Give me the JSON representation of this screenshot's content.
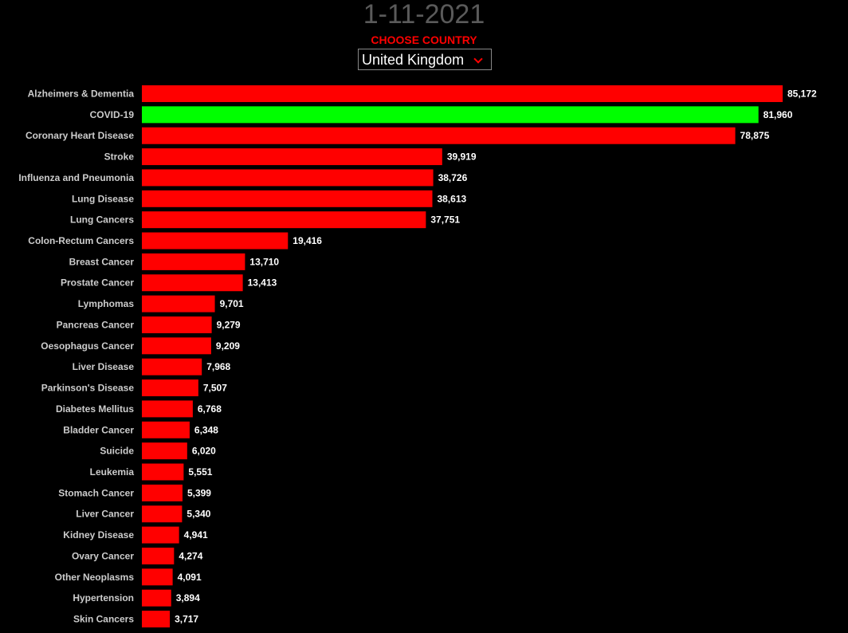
{
  "header": {
    "date": "1-11-2021",
    "choose_label": "CHOOSE COUNTRY",
    "selected_country": "United Kingdom"
  },
  "colors": {
    "bar_default": "#ff0000",
    "bar_highlight": "#00ff00",
    "background": "#000000",
    "date_text": "#5a5a5a",
    "label_text": "#cccccc",
    "value_text": "#ffffff"
  },
  "chart_data": {
    "type": "bar",
    "orientation": "horizontal",
    "highlight": "COVID-19",
    "categories": [
      "Alzheimers & Dementia",
      "COVID-19",
      "Coronary Heart Disease",
      "Stroke",
      "Influenza and Pneumonia",
      "Lung Disease",
      "Lung Cancers",
      "Colon-Rectum Cancers",
      "Breast Cancer",
      "Prostate Cancer",
      "Lymphomas",
      "Pancreas Cancer",
      "Oesophagus Cancer",
      "Liver Disease",
      "Parkinson's Disease",
      "Diabetes Mellitus",
      "Bladder Cancer",
      "Suicide",
      "Leukemia",
      "Stomach Cancer",
      "Liver Cancer",
      "Kidney Disease",
      "Ovary Cancer",
      "Other Neoplasms",
      "Hypertension",
      "Skin Cancers"
    ],
    "values": [
      85172,
      81960,
      78875,
      39919,
      38726,
      38613,
      37751,
      19416,
      13710,
      13413,
      9701,
      9279,
      9209,
      7968,
      7507,
      6768,
      6348,
      6020,
      5551,
      5399,
      5340,
      4941,
      4274,
      4091,
      3894,
      3717
    ],
    "value_labels": [
      "85,172",
      "81,960",
      "78,875",
      "39,919",
      "38,726",
      "38,613",
      "37,751",
      "19,416",
      "13,710",
      "13,413",
      "9,701",
      "9,279",
      "9,209",
      "7,968",
      "7,507",
      "6,768",
      "6,348",
      "6,020",
      "5,551",
      "5,399",
      "5,340",
      "4,941",
      "4,274",
      "4,091",
      "3,894",
      "3,717"
    ],
    "grid": false,
    "legend": "none"
  }
}
